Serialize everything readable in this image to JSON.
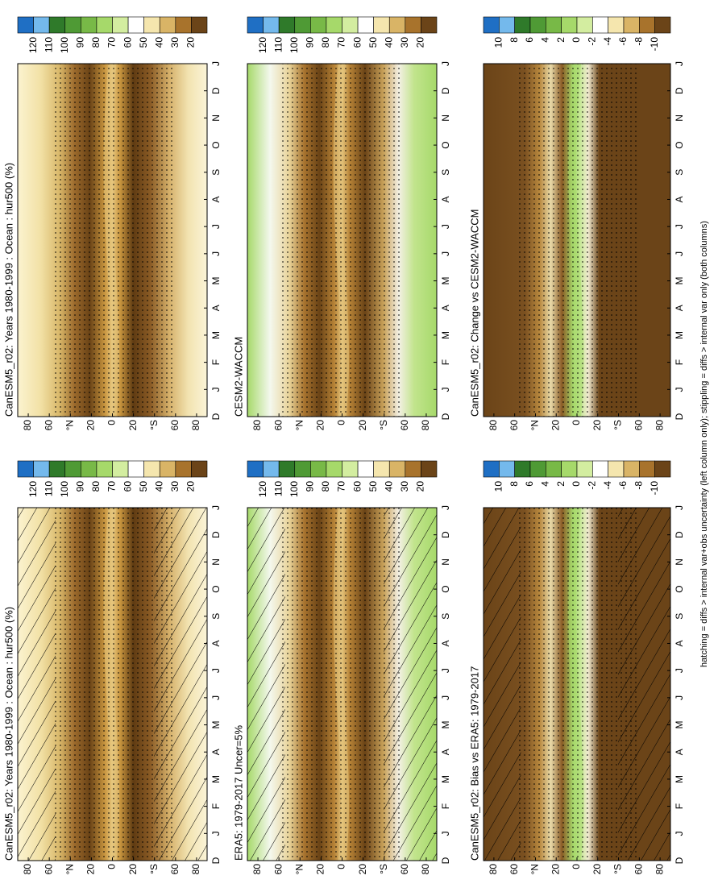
{
  "panels": [
    {
      "title": "CanESM5_r02: Years 1980-1999 : Ocean : hur500 (%)"
    },
    {
      "title": "CanESM5_r02: Years 1980-1999 : Ocean : hur500 (%)"
    },
    {
      "title": "ERA5: 1979-2017 Uncer=5%"
    },
    {
      "title": "CESM2-WACCM"
    },
    {
      "title": "CanESM5_r02: Bias vs ERA5: 1979-2017"
    },
    {
      "title": "CanESM5_r02: Change vs CESM2-WACCM"
    }
  ],
  "lat_labels": [
    80,
    60,
    "°N",
    20,
    0,
    20,
    "°S",
    60,
    80
  ],
  "month_labels": [
    "D",
    "J",
    "F",
    "M",
    "A",
    "M",
    "J",
    "J",
    "A",
    "S",
    "O",
    "N",
    "D",
    "J"
  ],
  "colorbars": {
    "hur": {
      "labels": [
        120,
        110,
        100,
        90,
        80,
        70,
        60,
        50,
        40,
        30,
        20
      ],
      "colors": [
        "#1f6fc4",
        "#74b9ec",
        "#2f7a2a",
        "#4f9a35",
        "#78b947",
        "#a6d96a",
        "#d3eda0",
        "#ffffff",
        "#f5e6ae",
        "#d9b466",
        "#a8732c",
        "#6b4418"
      ]
    },
    "diff": {
      "labels": [
        10,
        8,
        6,
        4,
        2,
        0,
        -2,
        -4,
        -6,
        -8,
        -10
      ],
      "colors": [
        "#1f6fc4",
        "#74b9ec",
        "#2f7a2a",
        "#4f9a35",
        "#78b947",
        "#a6d96a",
        "#d3eda0",
        "#ffffff",
        "#f5e6ae",
        "#d9b466",
        "#a8732c",
        "#6b4418"
      ]
    }
  },
  "footer": "hatching = diffs > internal var+obs uncertainty (left column only); stippling = diffs > internal var only (both columns)"
}
